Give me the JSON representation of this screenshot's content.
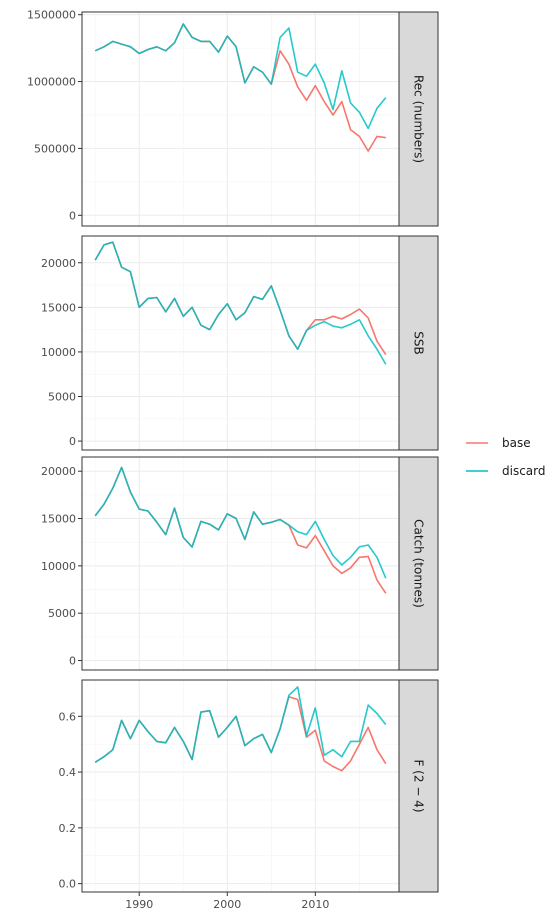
{
  "chart_data": {
    "type": "line",
    "x": [
      1985,
      1986,
      1987,
      1988,
      1989,
      1990,
      1991,
      1992,
      1993,
      1994,
      1995,
      1996,
      1997,
      1998,
      1999,
      2000,
      2001,
      2002,
      2003,
      2004,
      2005,
      2006,
      2007,
      2008,
      2009,
      2010,
      2011,
      2012,
      2013,
      2014,
      2015,
      2016,
      2017,
      2018
    ],
    "xlim": [
      1983.5,
      2019.5
    ],
    "x_ticks": [
      1990,
      2000,
      2010
    ],
    "x_tick_labels": [
      "1990",
      "2000",
      "2010"
    ],
    "grid": true,
    "legend": {
      "position": "right",
      "entries": [
        {
          "name": "base",
          "color": "#F8766D"
        },
        {
          "name": "discard",
          "color": "#00BFC4"
        }
      ]
    },
    "panels": [
      {
        "label": "Rec (numbers)",
        "ylim": [
          -80000,
          1520000
        ],
        "y_ticks": [
          0,
          500000,
          1000000,
          1500000
        ],
        "y_tick_labels": [
          "0",
          "500000",
          "1000000",
          "1500000"
        ],
        "series": [
          {
            "name": "base",
            "color": "#F8766D",
            "values": [
              1230000,
              1260000,
              1300000,
              1280000,
              1260000,
              1210000,
              1240000,
              1260000,
              1230000,
              1290000,
              1430000,
              1330000,
              1300000,
              1300000,
              1220000,
              1340000,
              1260000,
              990000,
              1110000,
              1070000,
              980000,
              1230000,
              1130000,
              960000,
              860000,
              970000,
              850000,
              750000,
              850000,
              640000,
              590000,
              480000,
              590000,
              580000
            ]
          },
          {
            "name": "discard",
            "color": "#00BFC4",
            "values": [
              1230000,
              1260000,
              1300000,
              1280000,
              1260000,
              1210000,
              1240000,
              1260000,
              1230000,
              1290000,
              1430000,
              1330000,
              1300000,
              1300000,
              1220000,
              1340000,
              1260000,
              990000,
              1110000,
              1070000,
              980000,
              1330000,
              1400000,
              1070000,
              1040000,
              1130000,
              990000,
              790000,
              1080000,
              840000,
              770000,
              650000,
              800000,
              880000
            ]
          }
        ]
      },
      {
        "label": "SSB",
        "ylim": [
          -1000,
          23000
        ],
        "y_ticks": [
          0,
          5000,
          10000,
          15000,
          20000
        ],
        "y_tick_labels": [
          "0",
          "5000",
          "10000",
          "15000",
          "20000"
        ],
        "series": [
          {
            "name": "base",
            "color": "#F8766D",
            "values": [
              20300,
              22000,
              22300,
              19500,
              19000,
              15000,
              16000,
              16100,
              14500,
              16000,
              14000,
              15000,
              13000,
              12500,
              14200,
              15400,
              13600,
              14400,
              16200,
              15900,
              17400,
              14700,
              11800,
              10300,
              12400,
              13600,
              13600,
              14000,
              13700,
              14200,
              14800,
              13800,
              11200,
              9700
            ]
          },
          {
            "name": "discard",
            "color": "#00BFC4",
            "values": [
              20300,
              22000,
              22300,
              19500,
              19000,
              15000,
              16000,
              16100,
              14500,
              16000,
              14000,
              15000,
              13000,
              12500,
              14200,
              15400,
              13600,
              14400,
              16200,
              15900,
              17400,
              14700,
              11800,
              10300,
              12400,
              13000,
              13400,
              12900,
              12700,
              13100,
              13600,
              11800,
              10300,
              8600
            ]
          }
        ]
      },
      {
        "label": "Catch (tonnes)",
        "ylim": [
          -1000,
          21500
        ],
        "y_ticks": [
          0,
          5000,
          10000,
          15000,
          20000
        ],
        "y_tick_labels": [
          "0",
          "5000",
          "10000",
          "15000",
          "20000"
        ],
        "series": [
          {
            "name": "base",
            "color": "#F8766D",
            "values": [
              15300,
              16500,
              18200,
              20400,
              17800,
              16000,
              15800,
              14600,
              13300,
              16100,
              13000,
              12000,
              14700,
              14400,
              13800,
              15500,
              15000,
              12800,
              15700,
              14400,
              14600,
              14900,
              14300,
              12200,
              11900,
              13200,
              11600,
              10000,
              9200,
              9800,
              10900,
              11000,
              8500,
              7100
            ]
          },
          {
            "name": "discard",
            "color": "#00BFC4",
            "values": [
              15300,
              16500,
              18200,
              20400,
              17800,
              16000,
              15800,
              14600,
              13300,
              16100,
              13000,
              12000,
              14700,
              14400,
              13800,
              15500,
              15000,
              12800,
              15700,
              14400,
              14600,
              14900,
              14300,
              13600,
              13300,
              14700,
              12800,
              11100,
              10100,
              10900,
              12000,
              12200,
              10900,
              8700
            ]
          }
        ]
      },
      {
        "label": "F (2 − 4)",
        "ylim": [
          -0.03,
          0.73
        ],
        "y_ticks": [
          0.0,
          0.2,
          0.4,
          0.6
        ],
        "y_tick_labels": [
          "0.0",
          "0.2",
          "0.4",
          "0.6"
        ],
        "series": [
          {
            "name": "base",
            "color": "#F8766D",
            "values": [
              0.435,
              0.455,
              0.48,
              0.585,
              0.52,
              0.585,
              0.545,
              0.51,
              0.505,
              0.56,
              0.51,
              0.445,
              0.615,
              0.62,
              0.525,
              0.56,
              0.6,
              0.495,
              0.52,
              0.535,
              0.47,
              0.555,
              0.67,
              0.66,
              0.525,
              0.55,
              0.44,
              0.42,
              0.405,
              0.44,
              0.5,
              0.56,
              0.48,
              0.43
            ]
          },
          {
            "name": "discard",
            "color": "#00BFC4",
            "values": [
              0.435,
              0.455,
              0.48,
              0.585,
              0.52,
              0.585,
              0.545,
              0.51,
              0.505,
              0.56,
              0.51,
              0.445,
              0.615,
              0.62,
              0.525,
              0.56,
              0.6,
              0.495,
              0.52,
              0.535,
              0.47,
              0.555,
              0.675,
              0.705,
              0.53,
              0.63,
              0.46,
              0.48,
              0.455,
              0.51,
              0.51,
              0.64,
              0.61,
              0.57
            ]
          }
        ]
      }
    ]
  }
}
